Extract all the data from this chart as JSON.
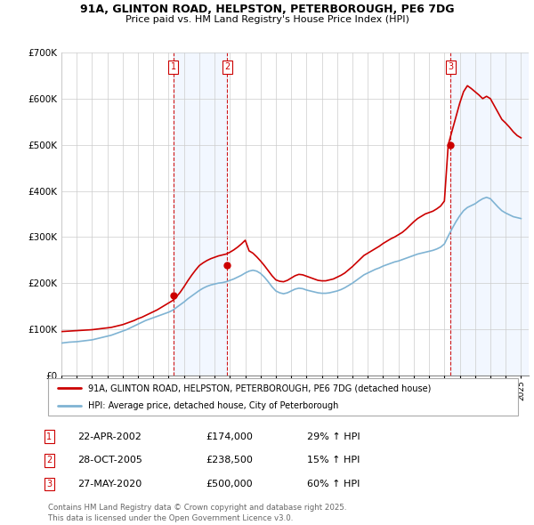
{
  "title_line1": "91A, GLINTON ROAD, HELPSTON, PETERBOROUGH, PE6 7DG",
  "title_line2": "Price paid vs. HM Land Registry's House Price Index (HPI)",
  "xlim_start": 1995.0,
  "xlim_end": 2025.5,
  "ylim": [
    0,
    700000
  ],
  "yticks": [
    0,
    100000,
    200000,
    300000,
    400000,
    500000,
    600000,
    700000
  ],
  "ytick_labels": [
    "£0",
    "£100K",
    "£200K",
    "£300K",
    "£400K",
    "£500K",
    "£600K",
    "£700K"
  ],
  "xticks": [
    1995,
    1996,
    1997,
    1998,
    1999,
    2000,
    2001,
    2002,
    2003,
    2004,
    2005,
    2006,
    2007,
    2008,
    2009,
    2010,
    2011,
    2012,
    2013,
    2014,
    2015,
    2016,
    2017,
    2018,
    2019,
    2020,
    2021,
    2022,
    2023,
    2024,
    2025
  ],
  "sale_dates": [
    2002.31,
    2005.83,
    2020.41
  ],
  "sale_prices": [
    174000,
    238500,
    500000
  ],
  "sale_labels": [
    "1",
    "2",
    "3"
  ],
  "red_line_color": "#cc0000",
  "blue_line_color": "#7fb3d3",
  "fill_color": "#ddeeff",
  "vline_color": "#cc0000",
  "grid_color": "#cccccc",
  "legend_line1": "91A, GLINTON ROAD, HELPSTON, PETERBOROUGH, PE6 7DG (detached house)",
  "legend_line2": "HPI: Average price, detached house, City of Peterborough",
  "footer_line1": "Contains HM Land Registry data © Crown copyright and database right 2025.",
  "footer_line2": "This data is licensed under the Open Government Licence v3.0.",
  "table_entries": [
    {
      "label": "1",
      "date": "22-APR-2002",
      "price": "£174,000",
      "change": "29% ↑ HPI"
    },
    {
      "label": "2",
      "date": "28-OCT-2005",
      "price": "£238,500",
      "change": "15% ↑ HPI"
    },
    {
      "label": "3",
      "date": "27-MAY-2020",
      "price": "£500,000",
      "change": "60% ↑ HPI"
    }
  ],
  "hpi_x": [
    1995.0,
    1995.25,
    1995.5,
    1995.75,
    1996.0,
    1996.25,
    1996.5,
    1996.75,
    1997.0,
    1997.25,
    1997.5,
    1997.75,
    1998.0,
    1998.25,
    1998.5,
    1998.75,
    1999.0,
    1999.25,
    1999.5,
    1999.75,
    2000.0,
    2000.25,
    2000.5,
    2000.75,
    2001.0,
    2001.25,
    2001.5,
    2001.75,
    2002.0,
    2002.25,
    2002.5,
    2002.75,
    2003.0,
    2003.25,
    2003.5,
    2003.75,
    2004.0,
    2004.25,
    2004.5,
    2004.75,
    2005.0,
    2005.25,
    2005.5,
    2005.75,
    2006.0,
    2006.25,
    2006.5,
    2006.75,
    2007.0,
    2007.25,
    2007.5,
    2007.75,
    2008.0,
    2008.25,
    2008.5,
    2008.75,
    2009.0,
    2009.25,
    2009.5,
    2009.75,
    2010.0,
    2010.25,
    2010.5,
    2010.75,
    2011.0,
    2011.25,
    2011.5,
    2011.75,
    2012.0,
    2012.25,
    2012.5,
    2012.75,
    2013.0,
    2013.25,
    2013.5,
    2013.75,
    2014.0,
    2014.25,
    2014.5,
    2014.75,
    2015.0,
    2015.25,
    2015.5,
    2015.75,
    2016.0,
    2016.25,
    2016.5,
    2016.75,
    2017.0,
    2017.25,
    2017.5,
    2017.75,
    2018.0,
    2018.25,
    2018.5,
    2018.75,
    2019.0,
    2019.25,
    2019.5,
    2019.75,
    2020.0,
    2020.25,
    2020.5,
    2020.75,
    2021.0,
    2021.25,
    2021.5,
    2021.75,
    2022.0,
    2022.25,
    2022.5,
    2022.75,
    2023.0,
    2023.25,
    2023.5,
    2023.75,
    2024.0,
    2024.25,
    2024.5,
    2024.75,
    2025.0
  ],
  "hpi_y": [
    70000,
    71000,
    72000,
    72500,
    73000,
    74000,
    75000,
    76000,
    77000,
    79000,
    81000,
    83000,
    85000,
    87000,
    90000,
    93000,
    96000,
    99000,
    103000,
    107000,
    111000,
    115000,
    119000,
    122000,
    125000,
    128000,
    131000,
    134000,
    137000,
    141000,
    147000,
    153000,
    159000,
    166000,
    172000,
    178000,
    184000,
    189000,
    193000,
    196000,
    198000,
    200000,
    201000,
    203000,
    206000,
    209000,
    213000,
    217000,
    222000,
    226000,
    228000,
    226000,
    221000,
    213000,
    203000,
    192000,
    183000,
    179000,
    177000,
    179000,
    183000,
    187000,
    189000,
    188000,
    185000,
    183000,
    181000,
    179000,
    178000,
    178000,
    179000,
    181000,
    183000,
    186000,
    190000,
    195000,
    200000,
    206000,
    212000,
    218000,
    222000,
    226000,
    230000,
    233000,
    237000,
    240000,
    243000,
    246000,
    248000,
    251000,
    254000,
    257000,
    260000,
    263000,
    265000,
    267000,
    269000,
    271000,
    274000,
    278000,
    285000,
    302000,
    318000,
    333000,
    346000,
    357000,
    364000,
    368000,
    372000,
    378000,
    383000,
    386000,
    383000,
    374000,
    365000,
    357000,
    352000,
    348000,
    344000,
    342000,
    340000
  ],
  "red_x": [
    1995.0,
    1995.25,
    1995.5,
    1995.75,
    1996.0,
    1996.25,
    1996.5,
    1996.75,
    1997.0,
    1997.25,
    1997.5,
    1997.75,
    1998.0,
    1998.25,
    1998.5,
    1998.75,
    1999.0,
    1999.25,
    1999.5,
    1999.75,
    2000.0,
    2000.25,
    2000.5,
    2000.75,
    2001.0,
    2001.25,
    2001.5,
    2001.75,
    2002.0,
    2002.25,
    2002.5,
    2002.75,
    2003.0,
    2003.25,
    2003.5,
    2003.75,
    2004.0,
    2004.25,
    2004.5,
    2004.75,
    2005.0,
    2005.25,
    2005.5,
    2005.75,
    2006.0,
    2006.25,
    2006.5,
    2006.75,
    2007.0,
    2007.25,
    2007.5,
    2007.75,
    2008.0,
    2008.25,
    2008.5,
    2008.75,
    2009.0,
    2009.25,
    2009.5,
    2009.75,
    2010.0,
    2010.25,
    2010.5,
    2010.75,
    2011.0,
    2011.25,
    2011.5,
    2011.75,
    2012.0,
    2012.25,
    2012.5,
    2012.75,
    2013.0,
    2013.25,
    2013.5,
    2013.75,
    2014.0,
    2014.25,
    2014.5,
    2014.75,
    2015.0,
    2015.25,
    2015.5,
    2015.75,
    2016.0,
    2016.25,
    2016.5,
    2016.75,
    2017.0,
    2017.25,
    2017.5,
    2017.75,
    2018.0,
    2018.25,
    2018.5,
    2018.75,
    2019.0,
    2019.25,
    2019.5,
    2019.75,
    2020.0,
    2020.25,
    2020.5,
    2020.75,
    2021.0,
    2021.25,
    2021.5,
    2021.75,
    2022.0,
    2022.25,
    2022.5,
    2022.75,
    2023.0,
    2023.25,
    2023.5,
    2023.75,
    2024.0,
    2024.25,
    2024.5,
    2024.75,
    2025.0
  ],
  "red_y": [
    95000,
    95500,
    96000,
    96500,
    97000,
    97500,
    98000,
    98500,
    99000,
    100000,
    101000,
    102000,
    103000,
    104000,
    106000,
    108000,
    110000,
    113000,
    116000,
    119000,
    123000,
    126000,
    130000,
    134000,
    138000,
    142000,
    147000,
    152000,
    157000,
    162000,
    170000,
    180000,
    192000,
    205000,
    217000,
    228000,
    238000,
    244000,
    249000,
    253000,
    256000,
    259000,
    261000,
    263000,
    267000,
    272000,
    278000,
    285000,
    293000,
    270000,
    265000,
    257000,
    248000,
    238000,
    227000,
    216000,
    207000,
    204000,
    203000,
    206000,
    211000,
    216000,
    219000,
    218000,
    215000,
    212000,
    209000,
    206000,
    205000,
    205000,
    207000,
    209000,
    213000,
    217000,
    222000,
    229000,
    236000,
    244000,
    252000,
    260000,
    265000,
    270000,
    275000,
    280000,
    286000,
    291000,
    296000,
    300000,
    305000,
    310000,
    317000,
    325000,
    333000,
    340000,
    345000,
    350000,
    353000,
    356000,
    361000,
    367000,
    378000,
    500000,
    530000,
    560000,
    590000,
    615000,
    628000,
    622000,
    615000,
    608000,
    600000,
    605000,
    600000,
    585000,
    570000,
    555000,
    547000,
    538000,
    528000,
    520000,
    515000
  ]
}
